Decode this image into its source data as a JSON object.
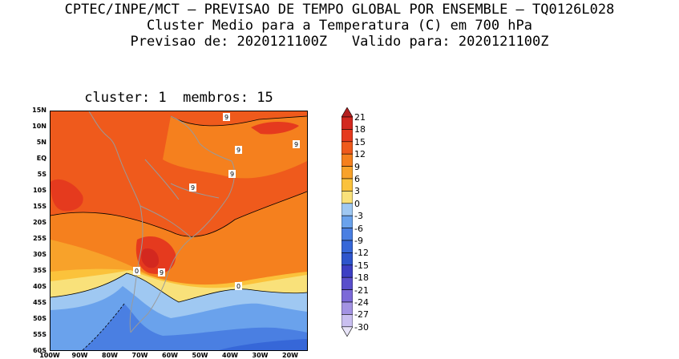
{
  "header": {
    "line1": "CPTEC/INPE/MCT – PREVISAO DE TEMPO GLOBAL POR ENSEMBLE – TQ0126L028",
    "line2": "Cluster Medio para a Temperatura (C) em 700 hPa",
    "line3": "Previsao de: 2020121100Z   Valido para: 2020121100Z"
  },
  "map": {
    "subtitle": "cluster: 1  membros: 15",
    "lat_labels": [
      "15N",
      "10N",
      "5N",
      "EQ",
      "5S",
      "10S",
      "15S",
      "20S",
      "25S",
      "30S",
      "35S",
      "40S",
      "45S",
      "50S",
      "55S",
      "60S"
    ],
    "lon_labels": [
      "100W",
      "90W",
      "80W",
      "70W",
      "60W",
      "50W",
      "40W",
      "30W",
      "20W"
    ],
    "contour_labels": [
      "9",
      "9",
      "9",
      "9",
      "9",
      "9",
      "0",
      "0"
    ]
  },
  "colorbar": {
    "levels": [
      "21",
      "18",
      "15",
      "12",
      "9",
      "6",
      "3",
      "0",
      "-3",
      "-6",
      "-9",
      "-12",
      "-15",
      "-18",
      "-21",
      "-24",
      "-27",
      "-30"
    ],
    "colors": [
      "#b41f1f",
      "#d3281f",
      "#e53a1e",
      "#ef5a1c",
      "#f5801e",
      "#f8a22a",
      "#fbc23b",
      "#f9e17a",
      "#9fc8f2",
      "#6aa2ec",
      "#4a7fe2",
      "#3667d8",
      "#2e55cc",
      "#3d3fc4",
      "#5a4fcc",
      "#7c6ad8",
      "#a393e3",
      "#c9bff0",
      "#e8e4f8"
    ]
  }
}
